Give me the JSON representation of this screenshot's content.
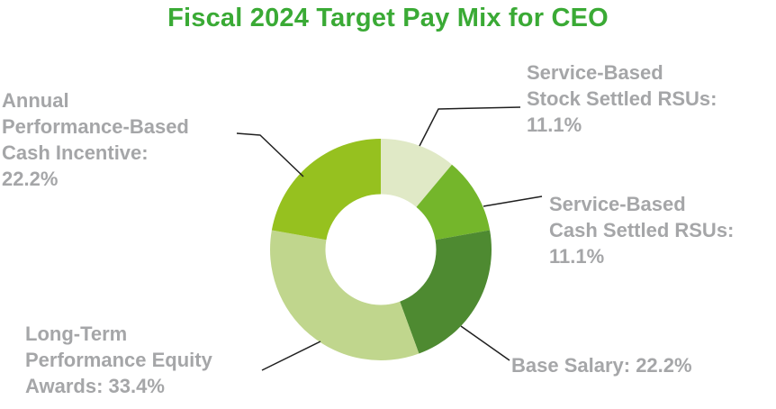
{
  "title": "Fiscal 2024 Target Pay Mix for CEO",
  "colors": {
    "title": "#3aaa35",
    "label": "#a5a6a8",
    "leader_line": "#1f1f1f",
    "background": "#ffffff"
  },
  "chart_data": {
    "type": "pie",
    "subtype": "donut",
    "title": "Fiscal 2024 Target Pay Mix for CEO",
    "start_angle_deg": 0,
    "direction": "clockwise",
    "inner_radius_ratio": 0.5,
    "legend": "none",
    "slices": [
      {
        "label": "Service-Based Stock Settled RSUs",
        "value": 11.1,
        "display": "11.1%",
        "color": "#e0e9c6"
      },
      {
        "label": "Service-Based Cash Settled RSUs",
        "value": 11.1,
        "display": "11.1%",
        "color": "#74b62b"
      },
      {
        "label": "Base Salary",
        "value": 22.2,
        "display": "22.2%",
        "color": "#4e8a31"
      },
      {
        "label": "Long-Term Performance Equity Awards",
        "value": 33.4,
        "display": "33.4%",
        "color": "#c0d68d"
      },
      {
        "label": "Annual Performance-Based Cash Incentive",
        "value": 22.2,
        "display": "22.2%",
        "color": "#96c11f"
      }
    ]
  },
  "labels": {
    "annual_incentive": {
      "lines": [
        "Annual",
        "Performance-Based",
        "Cash Incentive:",
        "22.2%"
      ]
    },
    "stock_rsus": {
      "lines": [
        "Service-Based",
        "Stock Settled RSUs:",
        "11.1%"
      ]
    },
    "cash_rsus": {
      "lines": [
        "Service-Based",
        "Cash Settled RSUs:",
        "11.1%"
      ]
    },
    "base_salary": {
      "lines": [
        "Base Salary: 22.2%"
      ]
    },
    "long_term": {
      "lines": [
        "Long-Term",
        "Performance Equity",
        "Awards: 33.4%"
      ]
    }
  }
}
